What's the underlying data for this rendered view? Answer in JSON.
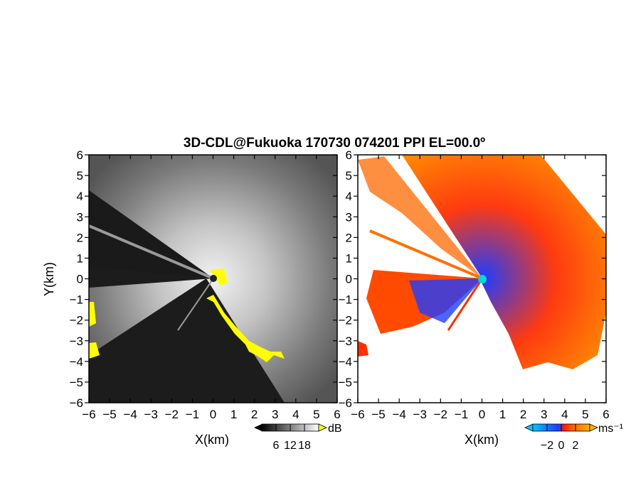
{
  "chart_data": [
    {
      "type": "heatmap",
      "title": "3D-CDL@Fukuoka 170730 074201 PPI EL=00.0º",
      "xlabel": "X(km)",
      "ylabel": "Y(km)",
      "xlim": [
        -6,
        6
      ],
      "ylim": [
        -6,
        6
      ],
      "ticks": [
        "−6",
        "−5",
        "−4",
        "−3",
        "−2",
        "−1",
        "0",
        "1",
        "2",
        "3",
        "4",
        "5",
        "6"
      ],
      "tick_values": [
        -6,
        -5,
        -4,
        -3,
        -2,
        -1,
        0,
        1,
        2,
        3,
        4,
        5,
        6
      ],
      "colormap": "grayscale",
      "flag_color": "#ffff00",
      "background_color": "#1c1c1c",
      "colorbar": {
        "unit": "dB",
        "ticks": [
          "6",
          "12",
          "18"
        ],
        "tick_values": [
          6,
          12,
          18
        ],
        "range": [
          0,
          24
        ]
      }
    },
    {
      "type": "heatmap",
      "xlabel": "X(km)",
      "xlim": [
        -6,
        6
      ],
      "ylim": [
        -6,
        6
      ],
      "ticks": [
        "−6",
        "−5",
        "−4",
        "−3",
        "−2",
        "−1",
        "0",
        "1",
        "2",
        "3",
        "4",
        "5",
        "6"
      ],
      "tick_values": [
        -6,
        -5,
        -4,
        -3,
        -2,
        -1,
        0,
        1,
        2,
        3,
        4,
        5,
        6
      ],
      "colormap": [
        "#00c8ff",
        "#1e3cff",
        "#ff2000",
        "#ff7000",
        "#ffb000"
      ],
      "colorbar": {
        "unit": "ms⁻¹",
        "ticks": [
          "−2",
          "0",
          "2"
        ],
        "tick_values": [
          -2,
          0,
          2
        ],
        "range": [
          -4,
          4
        ]
      }
    }
  ]
}
